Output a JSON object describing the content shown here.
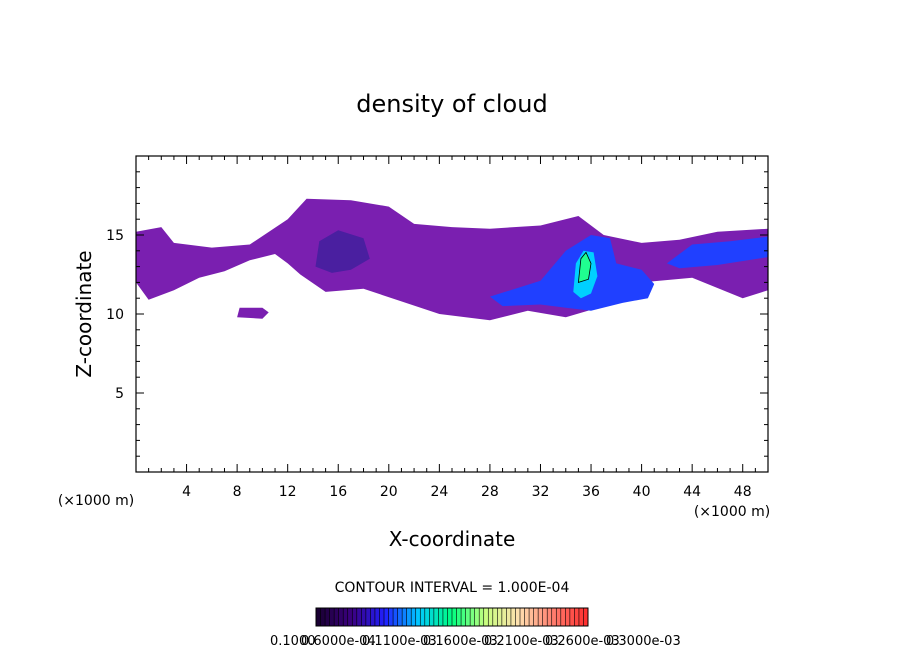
{
  "chart_data": {
    "type": "heatmap",
    "title": "density of cloud",
    "xlabel": "X-coordinate",
    "ylabel": "Z-coordinate",
    "x_unit": "(×1000 m)",
    "x_unit_left": "(×1000 m)",
    "xlim": [
      0,
      50
    ],
    "ylim": [
      0,
      20
    ],
    "xticks": [
      4,
      8,
      12,
      16,
      20,
      24,
      28,
      32,
      36,
      40,
      44,
      48
    ],
    "yticks": [
      5,
      10,
      15
    ],
    "contour_interval": "CONTOUR INTERVAL = 1.000E-04",
    "colorbar_labels": [
      "0.1000",
      "0.6000e-04",
      "0.1100e-03",
      "0.1600e-03",
      "0.2100e-03",
      "0.2600e-03",
      "0.3000e-03"
    ],
    "colormap": [
      "#1a0033",
      "#3b0080",
      "#2020ff",
      "#00c8ff",
      "#00ff80",
      "#c8ff80",
      "#ffe0b0",
      "#ff8070",
      "#ff3030"
    ],
    "regions": [
      {
        "name": "main-band",
        "level": 0.1,
        "color": "#7a1fb0",
        "outline": [
          [
            0,
            12
          ],
          [
            0,
            15.2
          ],
          [
            2,
            15.5
          ],
          [
            3,
            14.5
          ],
          [
            6,
            14.2
          ],
          [
            9,
            14.4
          ],
          [
            12,
            16
          ],
          [
            13.5,
            17.3
          ],
          [
            17,
            17.2
          ],
          [
            20,
            16.8
          ],
          [
            22,
            15.7
          ],
          [
            25,
            15.5
          ],
          [
            28,
            15.4
          ],
          [
            32,
            15.6
          ],
          [
            35,
            16.2
          ],
          [
            37,
            15
          ],
          [
            40,
            14.5
          ],
          [
            43,
            14.7
          ],
          [
            46,
            15.2
          ],
          [
            50,
            15.4
          ],
          [
            50,
            11.5
          ],
          [
            48,
            11
          ],
          [
            44,
            12.3
          ],
          [
            40,
            12
          ],
          [
            37,
            10.5
          ],
          [
            34,
            9.8
          ],
          [
            31,
            10.2
          ],
          [
            28,
            9.6
          ],
          [
            24,
            10
          ],
          [
            21,
            10.8
          ],
          [
            18,
            11.6
          ],
          [
            15,
            11.4
          ],
          [
            13,
            12.5
          ],
          [
            12,
            13.2
          ],
          [
            11,
            13.8
          ],
          [
            9,
            13.4
          ],
          [
            7,
            12.7
          ],
          [
            5,
            12.3
          ],
          [
            3,
            11.5
          ],
          [
            1,
            10.9
          ]
        ]
      },
      {
        "name": "center-core",
        "level": 0.3,
        "color": "#4a1fa0",
        "outline": [
          [
            14.2,
            13
          ],
          [
            14.5,
            14.6
          ],
          [
            16,
            15.3
          ],
          [
            18,
            14.8
          ],
          [
            18.5,
            13.5
          ],
          [
            17,
            12.8
          ],
          [
            15.5,
            12.6
          ]
        ]
      },
      {
        "name": "east-core",
        "level": 0.8,
        "color": "#2040ff",
        "outline": [
          [
            28,
            11.1
          ],
          [
            30,
            11.6
          ],
          [
            32,
            12.1
          ],
          [
            34,
            14
          ],
          [
            36,
            15
          ],
          [
            37.5,
            14.8
          ],
          [
            38,
            13.2
          ],
          [
            40,
            12.8
          ],
          [
            41,
            11.9
          ],
          [
            40.5,
            11
          ],
          [
            38.5,
            10.7
          ],
          [
            36,
            10.2
          ],
          [
            34,
            10.4
          ],
          [
            32,
            10.6
          ],
          [
            29,
            10.5
          ]
        ]
      },
      {
        "name": "east-peak",
        "level": 1.5,
        "color": "#00d0ff",
        "outline": [
          [
            34.6,
            11.4
          ],
          [
            34.8,
            13.2
          ],
          [
            35.4,
            14
          ],
          [
            36.2,
            13.9
          ],
          [
            36.5,
            12.4
          ],
          [
            36,
            11.3
          ],
          [
            35.2,
            11
          ]
        ]
      },
      {
        "name": "east-max",
        "level": 2.0,
        "color": "#20ff90",
        "outline": [
          [
            35,
            12
          ],
          [
            35.2,
            13.5
          ],
          [
            35.6,
            13.9
          ],
          [
            36,
            13.2
          ],
          [
            35.8,
            12.2
          ]
        ]
      },
      {
        "name": "right-streak",
        "level": 0.8,
        "color": "#2040ff",
        "outline": [
          [
            42,
            13.2
          ],
          [
            44,
            14.4
          ],
          [
            47,
            14.6
          ],
          [
            50,
            14.9
          ],
          [
            50,
            13.6
          ],
          [
            46,
            13.1
          ],
          [
            43,
            12.9
          ]
        ]
      },
      {
        "name": "left-gap-patch",
        "level": 0.1,
        "color": "#7a1fb0",
        "outline": [
          [
            8,
            9.8
          ],
          [
            8.2,
            10.4
          ],
          [
            10,
            10.4
          ],
          [
            10.5,
            10.1
          ],
          [
            10,
            9.7
          ]
        ]
      }
    ]
  }
}
